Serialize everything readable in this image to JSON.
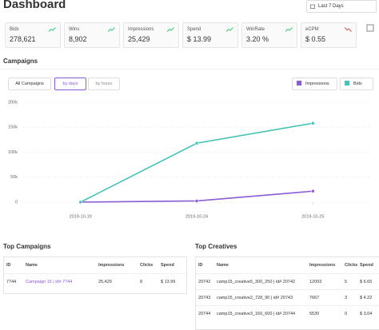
{
  "header": {
    "title": "Dashboard",
    "date_range": "Last 7 Days"
  },
  "stats": [
    {
      "label": "Bids",
      "value": "278,621",
      "color": "#2ecc71"
    },
    {
      "label": "Wins",
      "value": "8,902",
      "color": "#2ecc71"
    },
    {
      "label": "Impressions",
      "value": "25,429",
      "color": "#2ecc71"
    },
    {
      "label": "Spend",
      "value": "$ 13.99",
      "color": "#2ecc71"
    },
    {
      "label": "WinRate",
      "value": "3.20 %",
      "color": "#2ecc71"
    },
    {
      "label": "eCPM",
      "value": "$ 0.55",
      "color": "#e74c3c"
    }
  ],
  "campaigns": {
    "title": "Campaigns",
    "filter": "All Campaigns",
    "tabs": [
      "by days",
      "by hours"
    ]
  },
  "chart_data": {
    "type": "line",
    "categories": [
      "2019-10-19",
      "2019-10-24",
      "2019-10-25"
    ],
    "series": [
      {
        "name": "Impressions",
        "color": "#8a5cd6",
        "values": [
          0,
          2500,
          22000
        ]
      },
      {
        "name": "Bids",
        "color": "#45c4b6",
        "values": [
          0,
          118000,
          158000
        ]
      }
    ],
    "ylim": [
      0,
      200000
    ],
    "yticks": [
      0,
      {
        "value": 50000,
        "label": "50k"
      },
      {
        "value": 100000,
        "label": "100k"
      },
      {
        "value": 150000,
        "label": "150k"
      },
      {
        "value": 200000,
        "label": "200k"
      }
    ],
    "grid": true
  },
  "top_campaigns": {
    "title": "Top Campaigns",
    "headers": [
      "ID",
      "Name",
      "Impressions",
      "Clicks",
      "Spend"
    ],
    "rows": [
      [
        "7744",
        "Campaign 15 | id# 7744",
        "25,429",
        "8",
        "$ 13.99"
      ]
    ]
  },
  "top_creatives": {
    "title": "Top Creatives",
    "headers": [
      "ID",
      "Name",
      "Impressions",
      "Clicks",
      "Spend"
    ],
    "rows": [
      [
        "20742",
        "camp15_creative5_300_250 | id# 20742",
        "12093",
        "5",
        "$ 6.65"
      ],
      [
        "20743",
        "camp15_creative2_728_90 | id# 20743",
        "7667",
        "3",
        "$ 4.22"
      ],
      [
        "20744",
        "camp15_creative3_160_600 | id# 20744",
        "5530",
        "0",
        "$ 3.04"
      ]
    ]
  }
}
